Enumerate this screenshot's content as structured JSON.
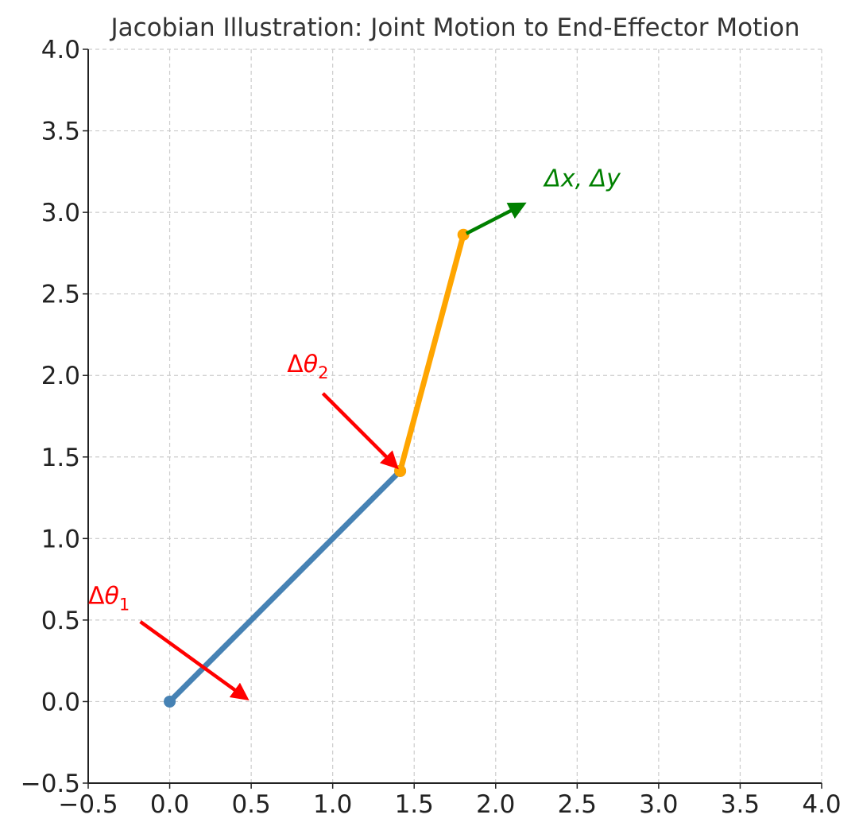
{
  "chart_data": {
    "type": "line",
    "title": "Jacobian Illustration: Joint Motion to End-Effector Motion",
    "xlabel": "",
    "ylabel": "",
    "xlim": [
      -0.5,
      4.0
    ],
    "ylim": [
      -0.5,
      4.0
    ],
    "x_ticks": [
      "−0.5",
      "0.0",
      "0.5",
      "1.0",
      "1.5",
      "2.0",
      "2.5",
      "3.0",
      "3.5",
      "4.0"
    ],
    "y_ticks": [
      "−0.5",
      "0.0",
      "0.5",
      "1.0",
      "1.5",
      "2.0",
      "2.5",
      "3.0",
      "3.5",
      "4.0"
    ],
    "grid": true,
    "legend": "none",
    "links": [
      {
        "x": [
          0.0,
          1.414
        ],
        "y": [
          0.0,
          1.414
        ],
        "color": "#4682b4"
      },
      {
        "x": [
          1.414,
          1.802
        ],
        "y": [
          1.414,
          2.863
        ],
        "color": "#ffa500"
      }
    ],
    "annotations": [
      {
        "label": "Δθ",
        "subscript": "1",
        "italic": false,
        "color": "#ff0000",
        "text_at": [
          -0.5,
          0.6
        ],
        "from": [
          -0.18,
          0.49
        ],
        "to": [
          0.47,
          0.02
        ]
      },
      {
        "label": "Δθ",
        "subscript": "2",
        "italic": false,
        "color": "#ff0000",
        "text_at": [
          0.72,
          2.02
        ],
        "from": [
          0.94,
          1.89
        ],
        "to": [
          1.39,
          1.44
        ]
      },
      {
        "label": "Δx, Δy",
        "subscript": "",
        "italic": true,
        "color": "#008000",
        "text_at": [
          2.3,
          3.16
        ],
        "from": [
          1.82,
          2.87
        ],
        "to": [
          2.17,
          3.05
        ]
      }
    ]
  }
}
